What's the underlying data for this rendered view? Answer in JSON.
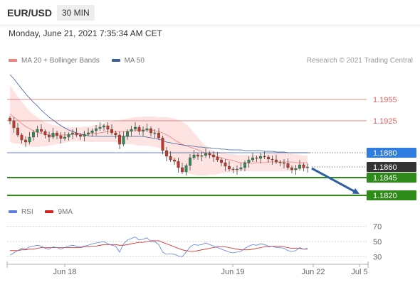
{
  "header": {
    "symbol": "EUR/USD",
    "timeframe": "30 MIN"
  },
  "timestamp": "Monday, June 21, 2021 7:35:34 AM CET",
  "legend": {
    "bollinger_label": "MA 20 + Bollinger Bands",
    "ma50_label": "MA 50",
    "rsi_label": "RSI",
    "ma9_label": "9MA"
  },
  "credit": "Research © 2021 Trading Central",
  "colors": {
    "bollinger": "#f08080",
    "bollinger_fill": "#fde4e2",
    "ma50": "#3b5e9c",
    "up_candle": "#2e8b57",
    "down_candle": "#c0392b",
    "resistance": "#e06060",
    "pivot_box": "#2f7de1",
    "last_box": "#333333",
    "support": "#2e8b1a",
    "arrow": "#2e5fa3",
    "rsi": "#5b7fd8",
    "rsi_ma": "#d62020"
  },
  "chart_data": [
    {
      "type": "candlestick",
      "title": "EUR/USD 30 MIN",
      "y_range": [
        1.1805,
        1.1995
      ],
      "x_tick_labels": [
        "Jun 18",
        "Jun 19",
        "Jun 22",
        "Jul 5"
      ],
      "levels": [
        {
          "label": "1.1955",
          "value": 1.1955,
          "kind": "resistance"
        },
        {
          "label": "1.1925",
          "value": 1.1925,
          "kind": "resistance"
        },
        {
          "label": "1.1880",
          "value": 1.188,
          "kind": "pivot"
        },
        {
          "label": "1.1860",
          "value": 1.186,
          "kind": "last"
        },
        {
          "label": "1.1845",
          "value": 1.1845,
          "kind": "support"
        },
        {
          "label": "1.1820",
          "value": 1.182,
          "kind": "support"
        }
      ],
      "close": [
        1.1925,
        1.1915,
        1.1905,
        1.1898,
        1.1895,
        1.1902,
        1.1909,
        1.1913,
        1.191,
        1.1905,
        1.1902,
        1.1908,
        1.1904,
        1.19,
        1.1902,
        1.1906,
        1.1908,
        1.1905,
        1.1903,
        1.1906,
        1.1908,
        1.1911,
        1.1914,
        1.1916,
        1.1918,
        1.1913,
        1.1908,
        1.1905,
        1.1892,
        1.1903,
        1.191,
        1.1913,
        1.1916,
        1.191,
        1.1912,
        1.1914,
        1.1908,
        1.1908,
        1.1901,
        1.1883,
        1.1875,
        1.187,
        1.1868,
        1.1859,
        1.1853,
        1.1862,
        1.1873,
        1.1877,
        1.1875,
        1.1876,
        1.1879,
        1.1877,
        1.1874,
        1.187,
        1.1866,
        1.1861,
        1.1857,
        1.1856,
        1.1857,
        1.1859,
        1.1866,
        1.187,
        1.1873,
        1.1872,
        1.1875,
        1.1874,
        1.1871,
        1.187,
        1.1867,
        1.1866,
        1.1865,
        1.1859,
        1.1856,
        1.1858,
        1.1863,
        1.1859,
        1.186
      ],
      "ma50": [
        1.199,
        1.1984,
        1.1977,
        1.197,
        1.1963,
        1.1957,
        1.1951,
        1.1946,
        1.194,
        1.1935,
        1.193,
        1.1926,
        1.1922,
        1.1918,
        1.1915,
        1.1912,
        1.191,
        1.1908,
        1.1906,
        1.1905,
        1.1904,
        1.1903,
        1.1903,
        1.1903,
        1.1903,
        1.1903,
        1.1903,
        1.1903,
        1.1903,
        1.1903,
        1.1903,
        1.1903,
        1.1903,
        1.1903,
        1.1903,
        1.1902,
        1.1901,
        1.19,
        1.1899,
        1.1897,
        1.1895,
        1.1894,
        1.1893,
        1.1892,
        1.1891,
        1.189,
        1.189,
        1.1889,
        1.1888,
        1.1888,
        1.1887,
        1.1887,
        1.1886,
        1.1886,
        1.1885,
        1.1885,
        1.1884,
        1.1884,
        1.1884,
        1.1884,
        1.1883,
        1.1883,
        1.1883,
        1.1883,
        1.1883,
        1.1882,
        1.1882,
        1.1882,
        1.1881,
        1.1881,
        1.1881,
        1.188,
        1.188,
        1.188,
        1.188,
        1.188,
        1.188
      ],
      "bollinger_mid": [
        1.1935,
        1.193,
        1.1926,
        1.1921,
        1.1917,
        1.1914,
        1.1911,
        1.1909,
        1.1907,
        1.1906,
        1.1905,
        1.1905,
        1.1905,
        1.1905,
        1.1905,
        1.1905,
        1.1906,
        1.1906,
        1.1906,
        1.1906,
        1.1906,
        1.1907,
        1.1907,
        1.1908,
        1.1909,
        1.191,
        1.191,
        1.191,
        1.191,
        1.191,
        1.191,
        1.1911,
        1.1911,
        1.1912,
        1.1912,
        1.1912,
        1.1912,
        1.1911,
        1.191,
        1.1908,
        1.1905,
        1.1902,
        1.1898,
        1.1895,
        1.1892,
        1.189,
        1.1888,
        1.1886,
        1.1884,
        1.1882,
        1.1879,
        1.1877,
        1.1876,
        1.1874,
        1.1873,
        1.1871,
        1.187,
        1.1869,
        1.1867,
        1.1866,
        1.1866,
        1.1865,
        1.1865,
        1.1866,
        1.1866,
        1.1866,
        1.1867,
        1.1867,
        1.1867,
        1.1867,
        1.1867,
        1.1867,
        1.1867,
        1.1866,
        1.1866,
        1.1866,
        1.1866
      ],
      "bollinger_upper": [
        1.1975,
        1.1967,
        1.1959,
        1.1952,
        1.1945,
        1.1939,
        1.1934,
        1.193,
        1.1926,
        1.1923,
        1.1921,
        1.1919,
        1.1918,
        1.1917,
        1.1916,
        1.1916,
        1.1916,
        1.1916,
        1.1916,
        1.1917,
        1.1917,
        1.1918,
        1.1919,
        1.192,
        1.1921,
        1.1923,
        1.1924,
        1.1925,
        1.1926,
        1.1927,
        1.1928,
        1.1929,
        1.193,
        1.193,
        1.1931,
        1.1931,
        1.1931,
        1.1931,
        1.193,
        1.193,
        1.193,
        1.1929,
        1.1928,
        1.1926,
        1.1924,
        1.192,
        1.1915,
        1.1908,
        1.1902,
        1.1895,
        1.189,
        1.1886,
        1.1883,
        1.1881,
        1.188,
        1.1879,
        1.1878,
        1.1878,
        1.1877,
        1.1877,
        1.1877,
        1.1877,
        1.1877,
        1.1877,
        1.1878,
        1.1878,
        1.1879,
        1.1879,
        1.1879,
        1.1879,
        1.1879,
        1.1879,
        1.1879,
        1.1878,
        1.1877,
        1.1876,
        1.1876
      ],
      "bollinger_lower": [
        1.1895,
        1.1893,
        1.1893,
        1.1891,
        1.189,
        1.1889,
        1.1888,
        1.1888,
        1.1889,
        1.1889,
        1.189,
        1.1891,
        1.1892,
        1.1893,
        1.1894,
        1.1895,
        1.1896,
        1.1896,
        1.1896,
        1.1896,
        1.1895,
        1.1895,
        1.1895,
        1.1895,
        1.1895,
        1.1895,
        1.1895,
        1.1895,
        1.1894,
        1.1893,
        1.1892,
        1.1892,
        1.1891,
        1.189,
        1.189,
        1.189,
        1.1889,
        1.1888,
        1.1887,
        1.1886,
        1.188,
        1.1872,
        1.1866,
        1.186,
        1.1855,
        1.1852,
        1.185,
        1.1849,
        1.1848,
        1.1848,
        1.1848,
        1.1849,
        1.1849,
        1.185,
        1.1851,
        1.1852,
        1.1852,
        1.1853,
        1.1853,
        1.1854,
        1.1854,
        1.1854,
        1.1854,
        1.1854,
        1.1854,
        1.1854,
        1.1854,
        1.1854,
        1.1854,
        1.1854,
        1.1854,
        1.1854,
        1.1854,
        1.1855,
        1.1856,
        1.1857,
        1.1857
      ],
      "forecast_arrow": {
        "from": 1.186,
        "to": 1.182
      }
    },
    {
      "type": "line",
      "title": "RSI",
      "y_range": [
        20,
        80
      ],
      "y_ticks": [
        70,
        50,
        30
      ],
      "series": [
        {
          "name": "RSI",
          "values": [
            32,
            35,
            38,
            41,
            40,
            43,
            44,
            45,
            44,
            41,
            40,
            43,
            42,
            40,
            42,
            44,
            45,
            44,
            43,
            44,
            45,
            47,
            48,
            49,
            50,
            47,
            45,
            44,
            36,
            47,
            52,
            54,
            56,
            52,
            53,
            55,
            50,
            50,
            46,
            36,
            33,
            34,
            33,
            31,
            30,
            36,
            43,
            46,
            45,
            46,
            48,
            46,
            44,
            42,
            40,
            38,
            36,
            35,
            36,
            37,
            41,
            44,
            46,
            45,
            47,
            46,
            44,
            44,
            42,
            42,
            41,
            38,
            37,
            38,
            42,
            40,
            41
          ]
        },
        {
          "name": "9MA",
          "values": [
            38,
            38,
            38,
            39,
            39,
            40,
            40,
            41,
            42,
            42,
            42,
            42,
            42,
            42,
            42,
            42,
            42,
            42,
            42,
            43,
            43,
            44,
            44,
            45,
            46,
            46,
            46,
            46,
            45,
            45,
            46,
            47,
            48,
            49,
            49,
            50,
            51,
            51,
            51,
            49,
            47,
            45,
            43,
            41,
            39,
            38,
            37,
            37,
            38,
            39,
            40,
            41,
            42,
            43,
            43,
            43,
            42,
            41,
            40,
            39,
            39,
            39,
            40,
            41,
            42,
            43,
            43,
            44,
            44,
            44,
            43,
            42,
            41,
            41,
            41,
            40,
            40
          ]
        }
      ]
    }
  ]
}
